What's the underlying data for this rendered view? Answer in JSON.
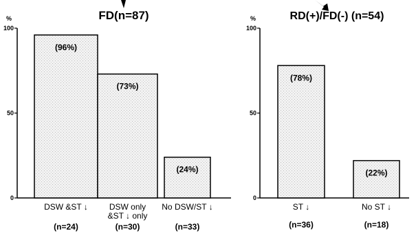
{
  "chart_data": [
    {
      "type": "bar",
      "title": "FD(n=87)",
      "ylabel": "%",
      "ylim": [
        0,
        100
      ],
      "yticks": [
        "0",
        "50",
        "100"
      ],
      "categories": [
        "DSW &ST ↓",
        "DSW only\n&ST ↓ only",
        "No DSW/ST ↓"
      ],
      "counts": [
        "(n=24)",
        "(n=30)",
        "(n=33)"
      ],
      "values": [
        96,
        73,
        24
      ],
      "value_labels": [
        "(96%)",
        "(73%)",
        "(24%)"
      ],
      "bar_color": "#efefef"
    },
    {
      "type": "bar",
      "title": "RD(+)/FD(-) (n=54)",
      "ylabel": "%",
      "ylim": [
        0,
        100
      ],
      "yticks": [
        "0",
        "50",
        "100"
      ],
      "categories": [
        "ST ↓",
        "No ST ↓"
      ],
      "counts": [
        "(n=36)",
        "(n=18)"
      ],
      "values": [
        78,
        22
      ],
      "value_labels": [
        "(78%)",
        "(22%)"
      ],
      "bar_color": "#efefef"
    }
  ]
}
